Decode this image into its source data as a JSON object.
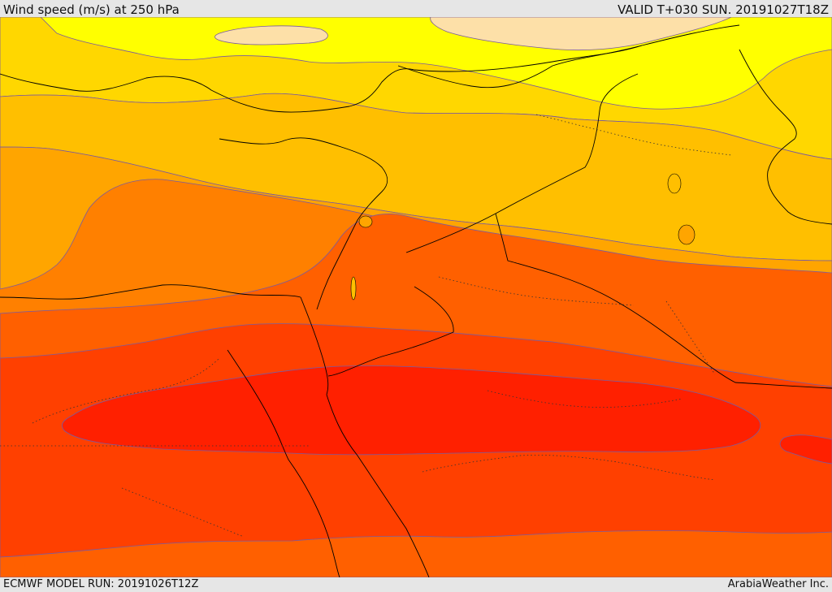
{
  "header": {
    "title": "Wind speed (m/s) at 250 hPa",
    "valid": "VALID T+030 SUN. 20191027T18Z"
  },
  "footer": {
    "model_run": "ECMWF MODEL RUN: 20191026T12Z",
    "credit": "ArabiaWeather Inc."
  },
  "colors": {
    "band_lightest": "#fde0a8",
    "band_yellow": "#ffff00",
    "band_yellow_orange": "#ffd700",
    "band_orange_light": "#ffbf00",
    "band_orange": "#ffa500",
    "band_orange_dark": "#ff8000",
    "band_red_orange": "#ff6000",
    "band_red": "#ff4000",
    "band_deep_red": "#ff2000",
    "contour_line": "#7a5aa0",
    "border_line": "#000000"
  }
}
